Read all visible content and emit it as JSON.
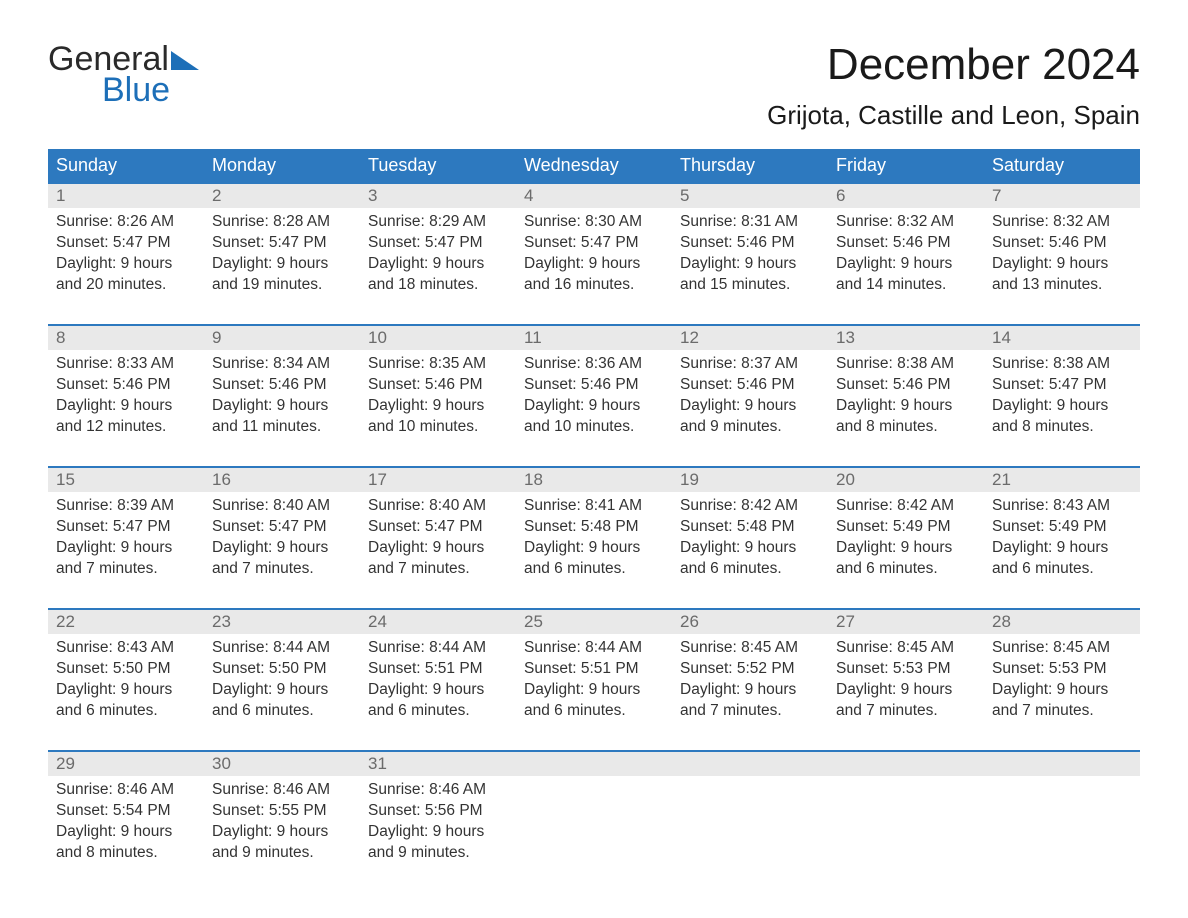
{
  "brand": {
    "word1": "General",
    "word2": "Blue",
    "accent_color": "#1d6fb8"
  },
  "title": "December 2024",
  "location": "Grijota, Castille and Leon, Spain",
  "header_bg": "#2d79bf",
  "daynum_bg": "#e9e9e9",
  "week_border": "#2d79bf",
  "days_of_week": [
    "Sunday",
    "Monday",
    "Tuesday",
    "Wednesday",
    "Thursday",
    "Friday",
    "Saturday"
  ],
  "weeks": [
    [
      {
        "n": "1",
        "sunrise": "Sunrise: 8:26 AM",
        "sunset": "Sunset: 5:47 PM",
        "d1": "Daylight: 9 hours",
        "d2": "and 20 minutes."
      },
      {
        "n": "2",
        "sunrise": "Sunrise: 8:28 AM",
        "sunset": "Sunset: 5:47 PM",
        "d1": "Daylight: 9 hours",
        "d2": "and 19 minutes."
      },
      {
        "n": "3",
        "sunrise": "Sunrise: 8:29 AM",
        "sunset": "Sunset: 5:47 PM",
        "d1": "Daylight: 9 hours",
        "d2": "and 18 minutes."
      },
      {
        "n": "4",
        "sunrise": "Sunrise: 8:30 AM",
        "sunset": "Sunset: 5:47 PM",
        "d1": "Daylight: 9 hours",
        "d2": "and 16 minutes."
      },
      {
        "n": "5",
        "sunrise": "Sunrise: 8:31 AM",
        "sunset": "Sunset: 5:46 PM",
        "d1": "Daylight: 9 hours",
        "d2": "and 15 minutes."
      },
      {
        "n": "6",
        "sunrise": "Sunrise: 8:32 AM",
        "sunset": "Sunset: 5:46 PM",
        "d1": "Daylight: 9 hours",
        "d2": "and 14 minutes."
      },
      {
        "n": "7",
        "sunrise": "Sunrise: 8:32 AM",
        "sunset": "Sunset: 5:46 PM",
        "d1": "Daylight: 9 hours",
        "d2": "and 13 minutes."
      }
    ],
    [
      {
        "n": "8",
        "sunrise": "Sunrise: 8:33 AM",
        "sunset": "Sunset: 5:46 PM",
        "d1": "Daylight: 9 hours",
        "d2": "and 12 minutes."
      },
      {
        "n": "9",
        "sunrise": "Sunrise: 8:34 AM",
        "sunset": "Sunset: 5:46 PM",
        "d1": "Daylight: 9 hours",
        "d2": "and 11 minutes."
      },
      {
        "n": "10",
        "sunrise": "Sunrise: 8:35 AM",
        "sunset": "Sunset: 5:46 PM",
        "d1": "Daylight: 9 hours",
        "d2": "and 10 minutes."
      },
      {
        "n": "11",
        "sunrise": "Sunrise: 8:36 AM",
        "sunset": "Sunset: 5:46 PM",
        "d1": "Daylight: 9 hours",
        "d2": "and 10 minutes."
      },
      {
        "n": "12",
        "sunrise": "Sunrise: 8:37 AM",
        "sunset": "Sunset: 5:46 PM",
        "d1": "Daylight: 9 hours",
        "d2": "and 9 minutes."
      },
      {
        "n": "13",
        "sunrise": "Sunrise: 8:38 AM",
        "sunset": "Sunset: 5:46 PM",
        "d1": "Daylight: 9 hours",
        "d2": "and 8 minutes."
      },
      {
        "n": "14",
        "sunrise": "Sunrise: 8:38 AM",
        "sunset": "Sunset: 5:47 PM",
        "d1": "Daylight: 9 hours",
        "d2": "and 8 minutes."
      }
    ],
    [
      {
        "n": "15",
        "sunrise": "Sunrise: 8:39 AM",
        "sunset": "Sunset: 5:47 PM",
        "d1": "Daylight: 9 hours",
        "d2": "and 7 minutes."
      },
      {
        "n": "16",
        "sunrise": "Sunrise: 8:40 AM",
        "sunset": "Sunset: 5:47 PM",
        "d1": "Daylight: 9 hours",
        "d2": "and 7 minutes."
      },
      {
        "n": "17",
        "sunrise": "Sunrise: 8:40 AM",
        "sunset": "Sunset: 5:47 PM",
        "d1": "Daylight: 9 hours",
        "d2": "and 7 minutes."
      },
      {
        "n": "18",
        "sunrise": "Sunrise: 8:41 AM",
        "sunset": "Sunset: 5:48 PM",
        "d1": "Daylight: 9 hours",
        "d2": "and 6 minutes."
      },
      {
        "n": "19",
        "sunrise": "Sunrise: 8:42 AM",
        "sunset": "Sunset: 5:48 PM",
        "d1": "Daylight: 9 hours",
        "d2": "and 6 minutes."
      },
      {
        "n": "20",
        "sunrise": "Sunrise: 8:42 AM",
        "sunset": "Sunset: 5:49 PM",
        "d1": "Daylight: 9 hours",
        "d2": "and 6 minutes."
      },
      {
        "n": "21",
        "sunrise": "Sunrise: 8:43 AM",
        "sunset": "Sunset: 5:49 PM",
        "d1": "Daylight: 9 hours",
        "d2": "and 6 minutes."
      }
    ],
    [
      {
        "n": "22",
        "sunrise": "Sunrise: 8:43 AM",
        "sunset": "Sunset: 5:50 PM",
        "d1": "Daylight: 9 hours",
        "d2": "and 6 minutes."
      },
      {
        "n": "23",
        "sunrise": "Sunrise: 8:44 AM",
        "sunset": "Sunset: 5:50 PM",
        "d1": "Daylight: 9 hours",
        "d2": "and 6 minutes."
      },
      {
        "n": "24",
        "sunrise": "Sunrise: 8:44 AM",
        "sunset": "Sunset: 5:51 PM",
        "d1": "Daylight: 9 hours",
        "d2": "and 6 minutes."
      },
      {
        "n": "25",
        "sunrise": "Sunrise: 8:44 AM",
        "sunset": "Sunset: 5:51 PM",
        "d1": "Daylight: 9 hours",
        "d2": "and 6 minutes."
      },
      {
        "n": "26",
        "sunrise": "Sunrise: 8:45 AM",
        "sunset": "Sunset: 5:52 PM",
        "d1": "Daylight: 9 hours",
        "d2": "and 7 minutes."
      },
      {
        "n": "27",
        "sunrise": "Sunrise: 8:45 AM",
        "sunset": "Sunset: 5:53 PM",
        "d1": "Daylight: 9 hours",
        "d2": "and 7 minutes."
      },
      {
        "n": "28",
        "sunrise": "Sunrise: 8:45 AM",
        "sunset": "Sunset: 5:53 PM",
        "d1": "Daylight: 9 hours",
        "d2": "and 7 minutes."
      }
    ],
    [
      {
        "n": "29",
        "sunrise": "Sunrise: 8:46 AM",
        "sunset": "Sunset: 5:54 PM",
        "d1": "Daylight: 9 hours",
        "d2": "and 8 minutes."
      },
      {
        "n": "30",
        "sunrise": "Sunrise: 8:46 AM",
        "sunset": "Sunset: 5:55 PM",
        "d1": "Daylight: 9 hours",
        "d2": "and 9 minutes."
      },
      {
        "n": "31",
        "sunrise": "Sunrise: 8:46 AM",
        "sunset": "Sunset: 5:56 PM",
        "d1": "Daylight: 9 hours",
        "d2": "and 9 minutes."
      },
      null,
      null,
      null,
      null
    ]
  ]
}
